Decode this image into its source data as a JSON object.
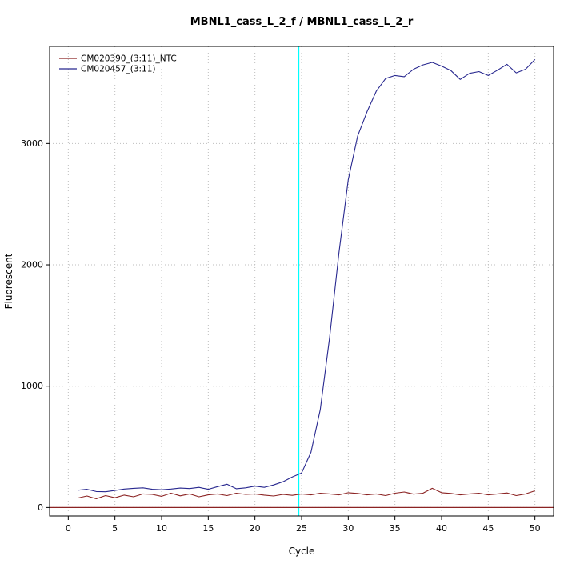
{
  "chart": {
    "title": "MBNL1_cass_L_2_f / MBNL1_cass_L_2_r",
    "xlabel": "Cycle",
    "ylabel": "Fluorescent"
  },
  "chart_data": {
    "type": "line",
    "title": "MBNL1_cass_L_2_f / MBNL1_cass_L_2_r",
    "xlabel": "Cycle",
    "ylabel": "Fluorescent",
    "x": [
      1,
      2,
      3,
      4,
      5,
      6,
      7,
      8,
      9,
      10,
      11,
      12,
      13,
      14,
      15,
      16,
      17,
      18,
      19,
      20,
      21,
      22,
      23,
      24,
      25,
      26,
      27,
      28,
      29,
      30,
      31,
      32,
      33,
      34,
      35,
      36,
      37,
      38,
      39,
      40,
      41,
      42,
      43,
      44,
      45,
      46,
      47,
      48,
      49,
      50
    ],
    "series": [
      {
        "name": "CM020390_(3:11)_NTC",
        "color": "#8B2323",
        "values": [
          78,
          95,
          72,
          98,
          80,
          102,
          88,
          112,
          108,
          92,
          118,
          96,
          112,
          88,
          104,
          112,
          98,
          118,
          108,
          112,
          102,
          95,
          108,
          100,
          112,
          104,
          118,
          112,
          104,
          122,
          116,
          104,
          112,
          98,
          118,
          128,
          110,
          118,
          158,
          122,
          116,
          104,
          112,
          118,
          104,
          112,
          120,
          98,
          112,
          138
        ]
      },
      {
        "name": "CM020457_(3:11)",
        "color": "#28288F",
        "values": [
          142,
          150,
          132,
          130,
          140,
          152,
          158,
          162,
          150,
          146,
          152,
          160,
          156,
          166,
          150,
          172,
          192,
          155,
          162,
          176,
          166,
          186,
          212,
          252,
          285,
          455,
          805,
          1400,
          2100,
          2700,
          3060,
          3260,
          3430,
          3535,
          3560,
          3550,
          3612,
          3648,
          3668,
          3638,
          3600,
          3528,
          3578,
          3592,
          3560,
          3604,
          3652,
          3582,
          3612,
          3692
        ]
      }
    ],
    "x_ticks": [
      0,
      5,
      10,
      15,
      20,
      25,
      30,
      35,
      40,
      45,
      50
    ],
    "y_ticks": [
      0,
      1000,
      2000,
      3000
    ],
    "xlim": [
      -2,
      52
    ],
    "ylim": [
      -70,
      3800
    ],
    "grid": true,
    "grid_color": "#BEBEBE",
    "legend_position": "top-left",
    "threshold_line_y": 0,
    "threshold_color": "#8B2323",
    "ct_line_x": 24.7,
    "ct_line_color": "#00FFFF"
  }
}
